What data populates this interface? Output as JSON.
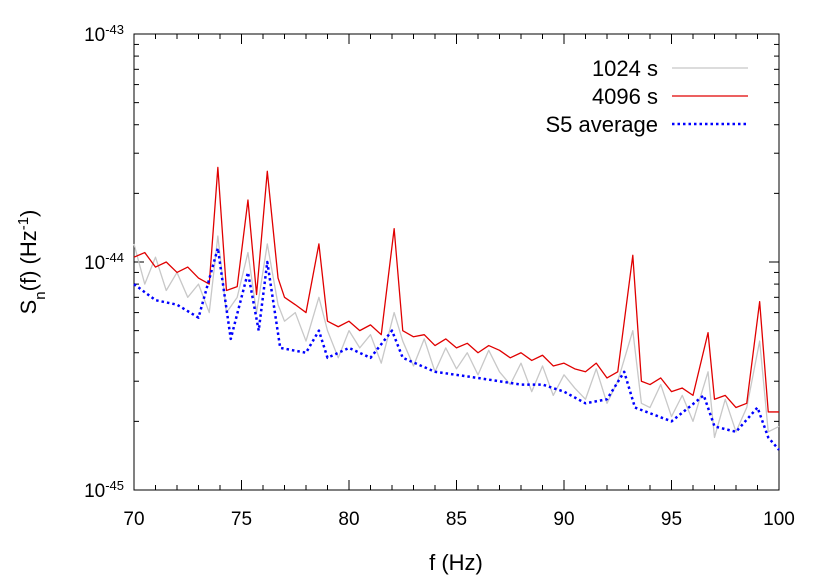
{
  "chart_data": {
    "type": "line",
    "xlabel": "f (Hz)",
    "ylabel": {
      "main": "S",
      "sub": "n",
      "mid": "(f) (Hz",
      "sup": "-1",
      "end": ")"
    },
    "xlim": [
      70,
      100
    ],
    "xticks": [
      70,
      75,
      80,
      85,
      90,
      95,
      100
    ],
    "ylim": [
      1e-45,
      1e-43
    ],
    "log_y": true,
    "yticks": [
      {
        "value": 1e-45,
        "label": "10",
        "sup": "-45"
      },
      {
        "value": 1e-44,
        "label": "10",
        "sup": "-44"
      },
      {
        "value": 1e-43,
        "label": "10",
        "sup": "-43"
      }
    ],
    "legend": "top-right",
    "series": [
      {
        "name": "1024 s",
        "color": "#c8c8c8",
        "style": "solid",
        "x": [
          70,
          70.5,
          71,
          71.5,
          72,
          72.5,
          73,
          73.5,
          73.9,
          74.3,
          74.8,
          75.3,
          75.7,
          76.2,
          76.7,
          77,
          77.5,
          78,
          78.6,
          79,
          79.5,
          80,
          80.5,
          81,
          81.5,
          82.1,
          82.5,
          83,
          83.5,
          84,
          84.5,
          85,
          85.5,
          86,
          86.5,
          87,
          87.5,
          88,
          88.5,
          89,
          89.5,
          90,
          90.5,
          91,
          91.5,
          92,
          92.5,
          93.2,
          93.6,
          94,
          94.5,
          95,
          95.5,
          96,
          96.7,
          97,
          97.5,
          98,
          98.5,
          99.1,
          99.5,
          100
        ],
        "values": [
          1.2e-44,
          8e-45,
          1.05e-44,
          7.5e-45,
          9e-45,
          7e-45,
          8e-45,
          6e-45,
          1.3e-44,
          6e-45,
          7e-45,
          1.1e-44,
          6e-45,
          1.2e-44,
          6.5e-45,
          5.5e-45,
          6e-45,
          4.5e-45,
          7e-45,
          5e-45,
          3.8e-45,
          5e-45,
          4.2e-45,
          4.8e-45,
          3.6e-45,
          6e-45,
          4.5e-45,
          3.5e-45,
          4.6e-45,
          3.3e-45,
          4.2e-45,
          3.4e-45,
          4e-45,
          3.2e-45,
          4.1e-45,
          3.3e-45,
          2.9e-45,
          3.6e-45,
          2.7e-45,
          3.5e-45,
          2.6e-45,
          3.2e-45,
          2.8e-45,
          2.5e-45,
          3.4e-45,
          2.4e-45,
          3e-45,
          5e-45,
          2.4e-45,
          2.3e-45,
          2.9e-45,
          2.1e-45,
          2.6e-45,
          2e-45,
          3.3e-45,
          1.7e-45,
          2.5e-45,
          1.8e-45,
          2.3e-45,
          4.5e-45,
          1.8e-45,
          1.9e-45
        ]
      },
      {
        "name": "4096 s",
        "color": "#e00000",
        "style": "solid",
        "x": [
          70,
          70.5,
          71,
          71.5,
          72,
          72.5,
          73,
          73.5,
          73.9,
          74.3,
          74.8,
          75.3,
          75.7,
          76.2,
          76.7,
          77,
          77.5,
          78,
          78.6,
          79,
          79.5,
          80,
          80.5,
          81,
          81.5,
          82.1,
          82.5,
          83,
          83.5,
          84,
          84.5,
          85,
          85.5,
          86,
          86.5,
          87,
          87.5,
          88,
          88.5,
          89,
          89.5,
          90,
          90.5,
          91,
          91.5,
          92,
          92.5,
          93.2,
          93.6,
          94,
          94.5,
          95,
          95.5,
          96,
          96.7,
          97,
          97.5,
          98,
          98.5,
          99.1,
          99.5,
          100
        ],
        "values": [
          1.05e-44,
          1.1e-44,
          9.5e-45,
          1e-44,
          9e-45,
          9.5e-45,
          8.5e-45,
          8e-45,
          2.6e-44,
          7.5e-45,
          7.8e-45,
          1.87e-44,
          7.2e-45,
          2.5e-44,
          8.5e-45,
          7e-45,
          6.5e-45,
          6e-45,
          1.2e-44,
          5.5e-45,
          5.2e-45,
          5.5e-45,
          5e-45,
          5.3e-45,
          4.8e-45,
          1.4e-44,
          5e-45,
          4.7e-45,
          4.8e-45,
          4.3e-45,
          4.6e-45,
          4.2e-45,
          4.4e-45,
          4e-45,
          4.3e-45,
          4.1e-45,
          3.8e-45,
          4e-45,
          3.7e-45,
          3.9e-45,
          3.5e-45,
          3.6e-45,
          3.4e-45,
          3.3e-45,
          3.6e-45,
          3.1e-45,
          3.3e-45,
          1.07e-44,
          3e-45,
          2.9e-45,
          3.1e-45,
          2.7e-45,
          2.8e-45,
          2.6e-45,
          4.9e-45,
          2.5e-45,
          2.6e-45,
          2.3e-45,
          2.4e-45,
          6.7e-45,
          2.2e-45,
          2.2e-45
        ]
      },
      {
        "name": "S5 average",
        "color": "#0000ff",
        "style": "dotted",
        "x": [
          70,
          71,
          72,
          73,
          73.9,
          74.5,
          75.3,
          75.8,
          76.2,
          76.8,
          78,
          78.6,
          79,
          80,
          81,
          82,
          82.5,
          84,
          86,
          88,
          89,
          90,
          91,
          92,
          92.8,
          93.3,
          95,
          96.5,
          97,
          98,
          99,
          99.5,
          100
        ],
        "values": [
          8e-45,
          6.8e-45,
          6.5e-45,
          5.7e-45,
          1.15e-44,
          4.6e-45,
          9e-45,
          5e-45,
          1e-44,
          4.2e-45,
          4e-45,
          5e-45,
          3.8e-45,
          4.2e-45,
          3.8e-45,
          5e-45,
          3.8e-45,
          3.3e-45,
          3.1e-45,
          2.9e-45,
          2.9e-45,
          2.7e-45,
          2.4e-45,
          2.5e-45,
          3.3e-45,
          2.3e-45,
          2e-45,
          2.6e-45,
          1.9e-45,
          1.8e-45,
          2.3e-45,
          1.7e-45,
          1.5e-45
        ]
      }
    ]
  }
}
